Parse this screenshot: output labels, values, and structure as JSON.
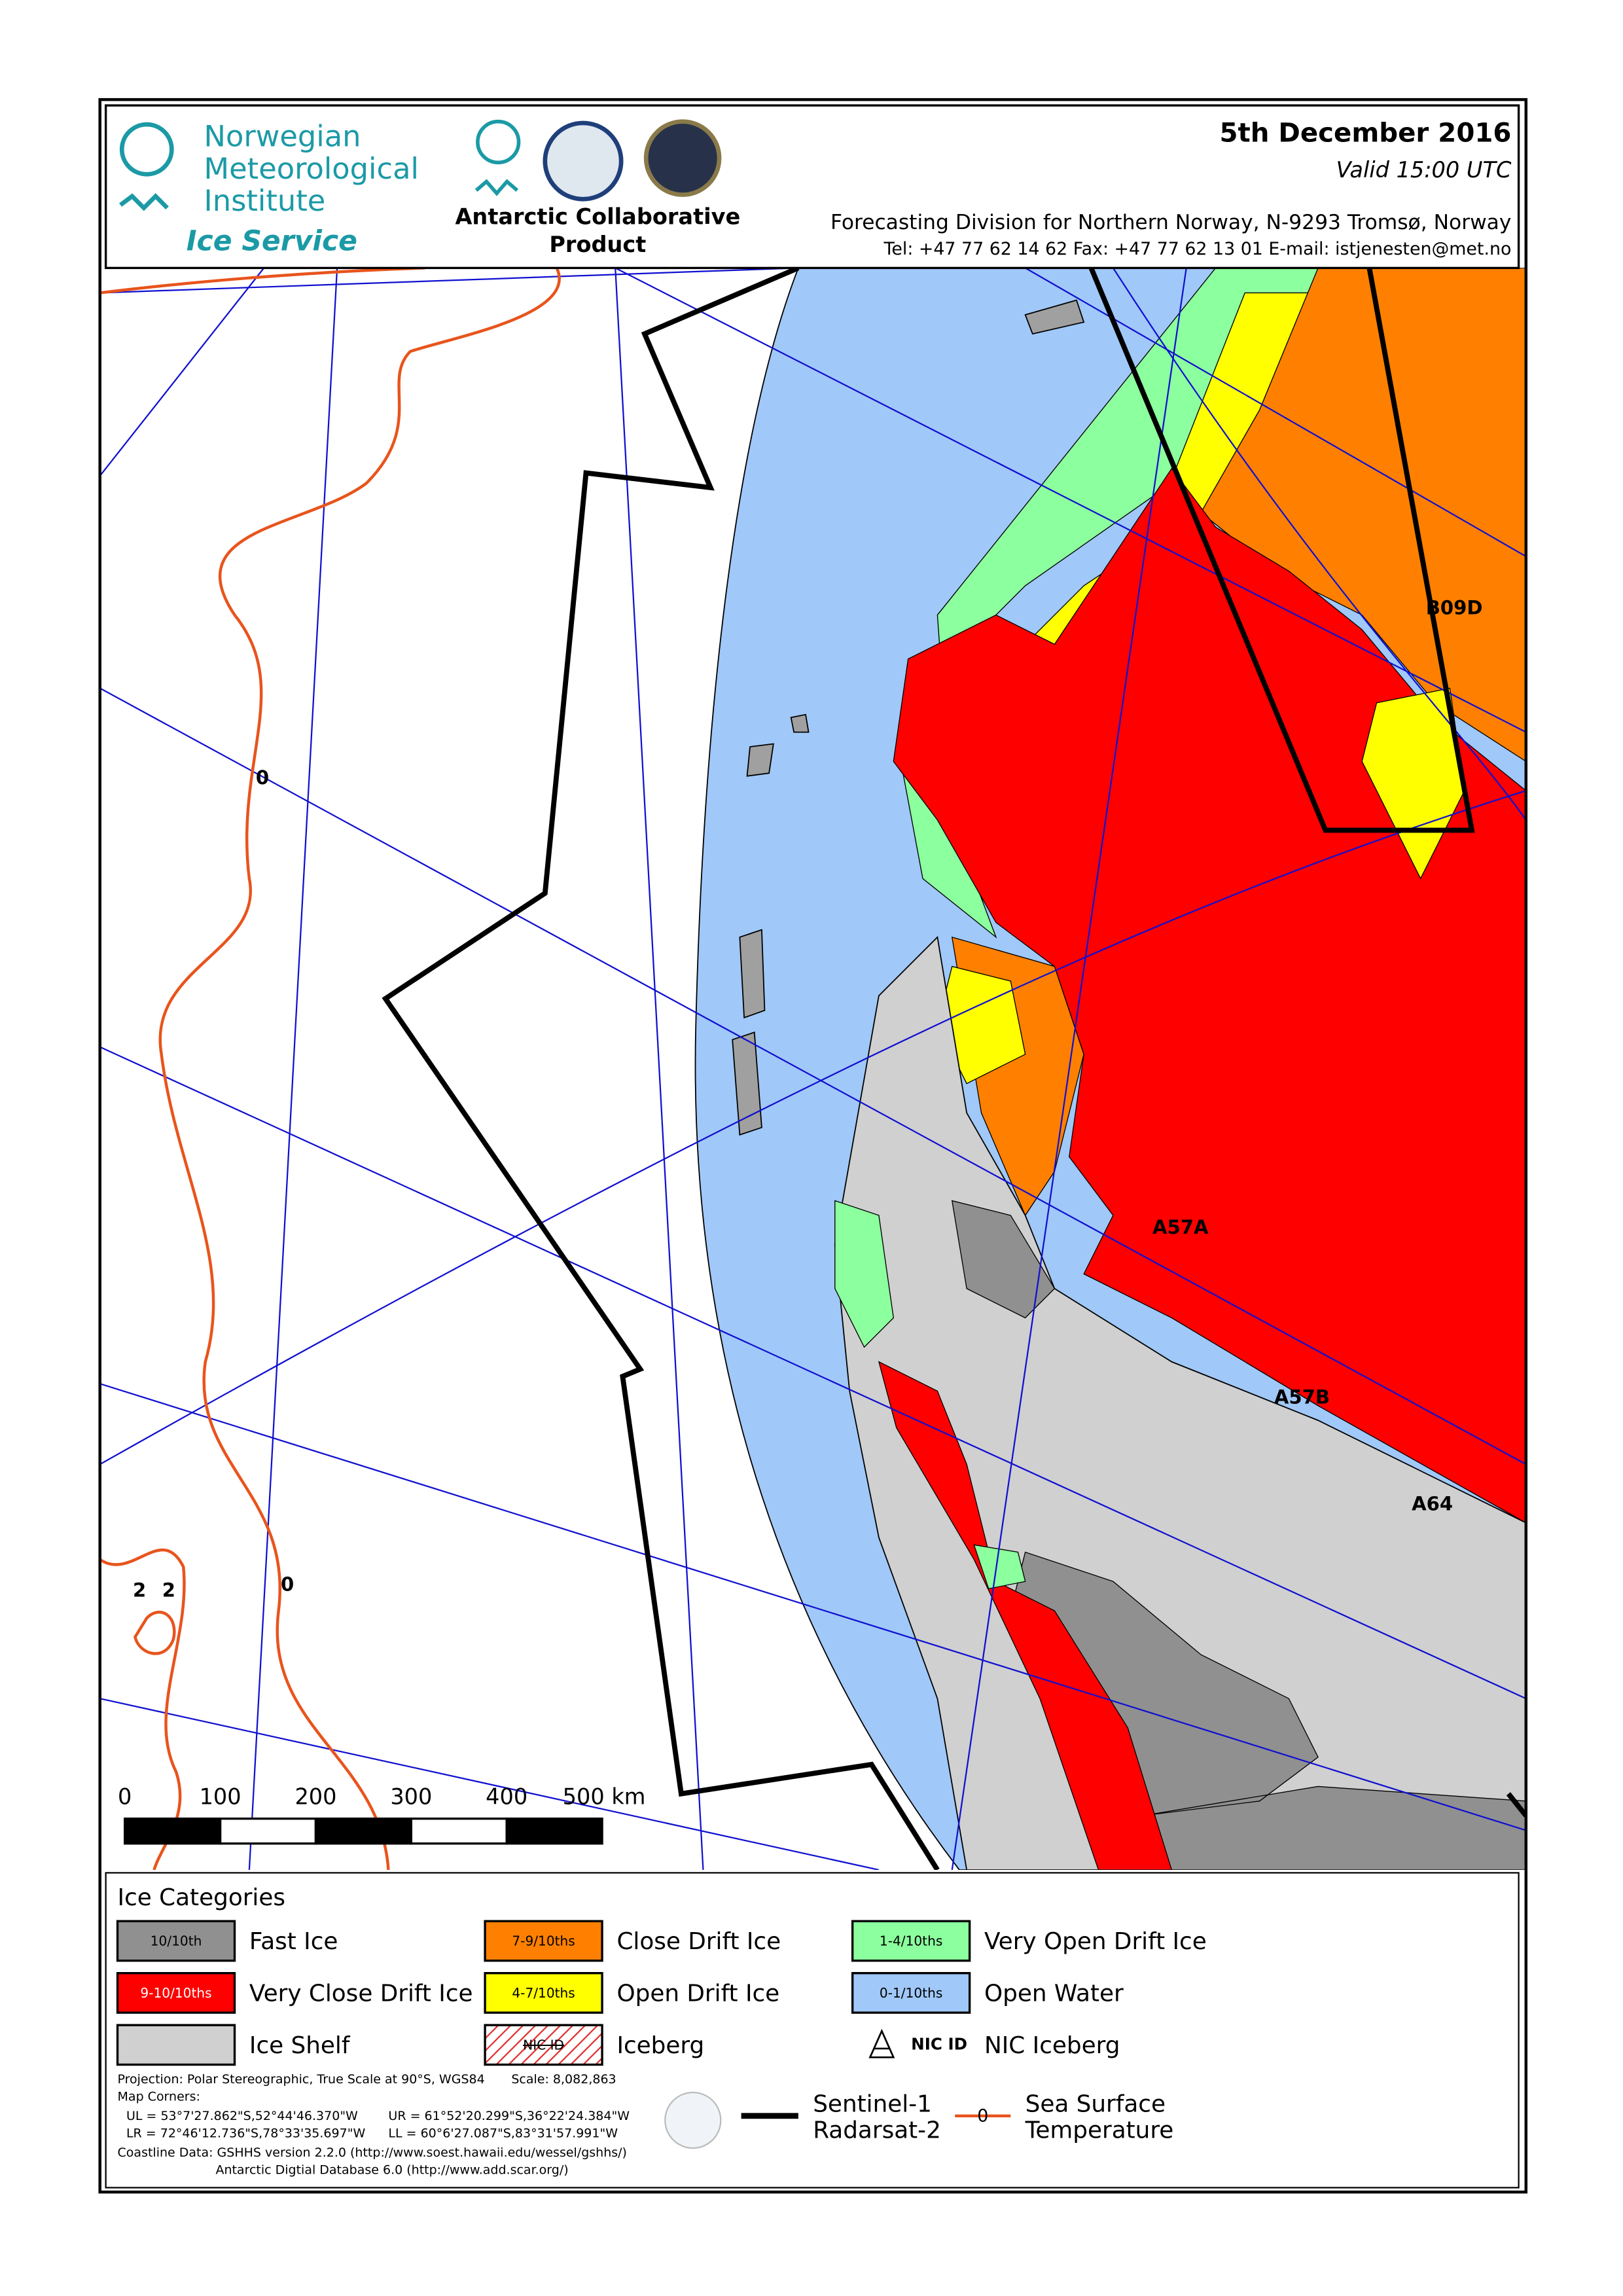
{
  "header": {
    "org_name": [
      "Norwegian",
      "Meteorological",
      "Institute"
    ],
    "service": "Ice Service",
    "product": [
      "Antarctic Collaborative",
      "Product"
    ],
    "date": "5th December 2016",
    "valid": "Valid 15:00 UTC",
    "division": "Forecasting Division for Northern Norway, N-9293 Tromsø, Norway",
    "contact": "Tel: +47 77 62 14 62   Fax: +47 77 62 13 01   E-mail: istjenesten@met.no"
  },
  "map": {
    "iceberg_labels": [
      "B09D",
      "A57A",
      "A57B",
      "A64"
    ],
    "sst_labels": [
      "0",
      "2",
      "2",
      "0"
    ],
    "scale_bar": [
      "0",
      "100",
      "200",
      "300",
      "400",
      "500 km"
    ]
  },
  "legend": {
    "title": "Ice Categories",
    "items": [
      {
        "code": "10/10th",
        "name": "Fast Ice"
      },
      {
        "code": "9-10/10ths",
        "name": "Very Close Drift Ice"
      },
      {
        "name": "Ice Shelf"
      },
      {
        "code": "7-9/10ths",
        "name": "Close Drift Ice"
      },
      {
        "code": "4-7/10ths",
        "name": "Open Drift Ice"
      },
      {
        "code": "NIC ID",
        "name": "Iceberg"
      },
      {
        "code": "1-4/10ths",
        "name": "Very Open Drift Ice"
      },
      {
        "code": "0-1/10ths",
        "name": "Open Water"
      },
      {
        "code": "NIC ID",
        "name": "NIC Iceberg"
      }
    ],
    "lines": [
      {
        "name": [
          "Sentinel-1",
          "Radarsat-2"
        ]
      },
      {
        "symbol": "0",
        "name": [
          "Sea Surface",
          "Temperature"
        ]
      }
    ],
    "scale": "Scale: 8,082,863",
    "notes": [
      "Projection: Polar Stereographic, True Scale at 90°S, WGS84",
      "Map Corners:",
      "UL = 53°7'27.862\"S,52°44'46.370\"W",
      "UR = 61°52'20.299\"S,36°22'24.384\"W",
      "LR = 72°46'12.736\"S,78°33'35.697\"W",
      "LL = 60°6'27.087\"S,83°31'57.991\"W",
      "Coastline Data: GSHHS version 2.2.0 (http://www.soest.hawaii.edu/wessel/gshhs/)",
      "Antarctic Digtial Database 6.0 (http://www.add.scar.org/)"
    ]
  }
}
